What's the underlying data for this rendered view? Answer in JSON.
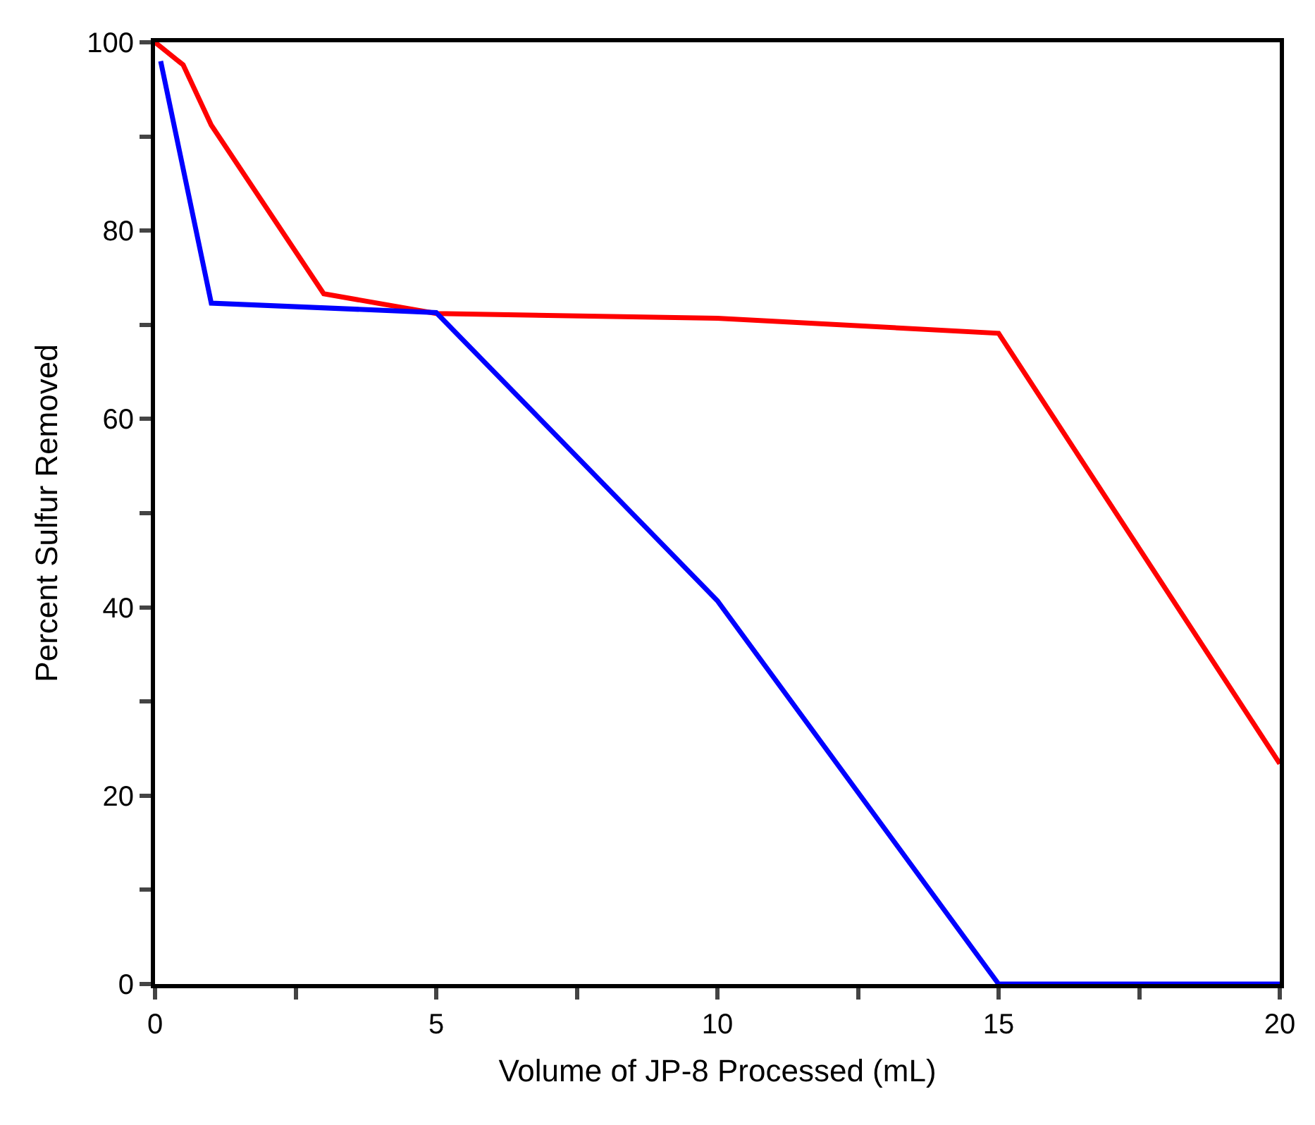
{
  "chart_data": {
    "type": "line",
    "xlabel": "Volume of JP-8 Processed (mL)",
    "ylabel": "Percent Sulfur Removed",
    "xlim": [
      0,
      20
    ],
    "xticks": [
      0,
      {
        "value": 2.5,
        "label": null
      },
      5,
      {
        "value": 7.5,
        "label": null
      },
      10,
      {
        "value": 12.5,
        "label": null
      },
      15,
      {
        "value": 17.5,
        "label": null
      },
      20
    ],
    "ylim": [
      0,
      100
    ],
    "yticks": [
      0,
      {
        "value": 10,
        "label": null
      },
      20,
      {
        "value": 30,
        "label": null
      },
      40,
      {
        "value": 50,
        "label": null
      },
      60,
      {
        "value": 70,
        "label": null
      },
      80,
      {
        "value": 90,
        "label": null
      },
      100
    ],
    "marker": "none",
    "line_style": "solid",
    "series": [
      {
        "color": "#ff0000",
        "x": [
          0,
          0.5,
          1,
          3,
          5,
          10,
          15,
          20
        ],
        "values": [
          100,
          97.6,
          91.2,
          73.3,
          71.2,
          70.7,
          69.1,
          23.4
        ]
      },
      {
        "color": "#0000ff",
        "x": [
          0.1,
          1,
          5,
          10,
          15,
          20
        ],
        "values": [
          98,
          72.3,
          71.3,
          40.7,
          0,
          0
        ]
      }
    ]
  }
}
